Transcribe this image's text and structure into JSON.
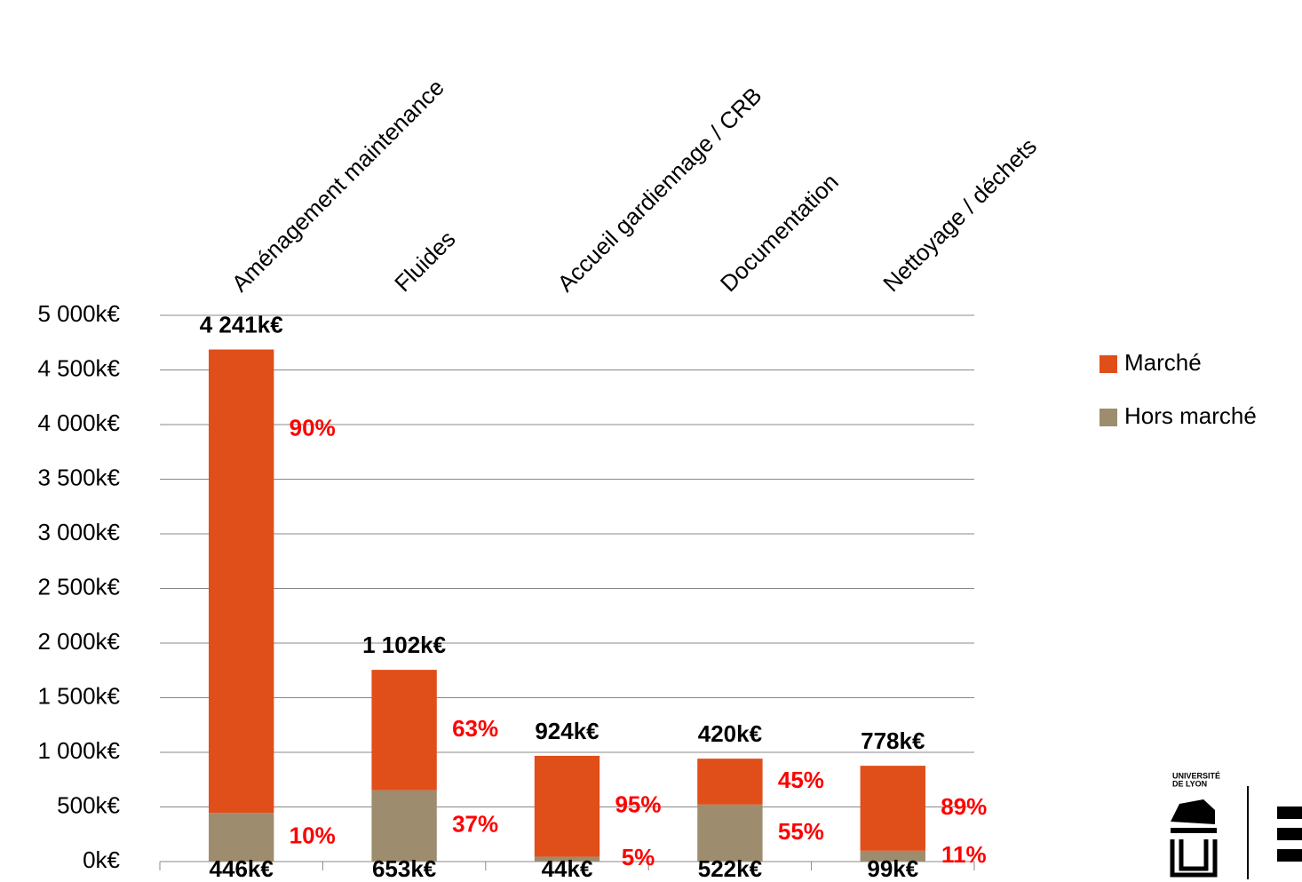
{
  "chart_data": {
    "type": "stacked_bar",
    "categories": [
      "Aménagement maintenance",
      "Fluides",
      "Accueil gardiennage / CRB",
      "Documentation",
      "Nettoyage / déchets"
    ],
    "series": [
      {
        "name": "Hors marché",
        "color": "#9e8c6e",
        "values": [
          446,
          653,
          44,
          522,
          99
        ],
        "value_labels": [
          "446k€",
          "653k€",
          "44k€",
          "522k€",
          "99k€"
        ],
        "shares": [
          10,
          37,
          5,
          55,
          11
        ],
        "share_labels": [
          "10%",
          "37%",
          "5%",
          "55%",
          "11%"
        ]
      },
      {
        "name": "Marché",
        "color": "#e04e1a",
        "values": [
          4241,
          1102,
          924,
          420,
          778
        ],
        "value_labels": [
          "4 241k€",
          "1 102k€",
          "924k€",
          "420k€",
          "778k€"
        ],
        "shares": [
          90,
          63,
          95,
          45,
          89
        ],
        "share_labels": [
          "90%",
          "63%",
          "95%",
          "45%",
          "89%"
        ]
      }
    ],
    "ylim": [
      0,
      5000
    ],
    "yticks": [
      {
        "value": 0,
        "label": "0k€"
      },
      {
        "value": 500,
        "label": "500k€"
      },
      {
        "value": 1000,
        "label": "1 000k€"
      },
      {
        "value": 1500,
        "label": "1 500k€"
      },
      {
        "value": 2000,
        "label": "2 000k€"
      },
      {
        "value": 2500,
        "label": "2 500k€"
      },
      {
        "value": 3000,
        "label": "3 000k€"
      },
      {
        "value": 3500,
        "label": "3 500k€"
      },
      {
        "value": 4000,
        "label": "4 000k€"
      },
      {
        "value": 4500,
        "label": "4 500k€"
      },
      {
        "value": 5000,
        "label": "5 000k€"
      }
    ],
    "grid": true,
    "legend": "right"
  },
  "logo": {
    "lines": [
      "UNIVERSITÉ",
      "DE LYON"
    ]
  }
}
